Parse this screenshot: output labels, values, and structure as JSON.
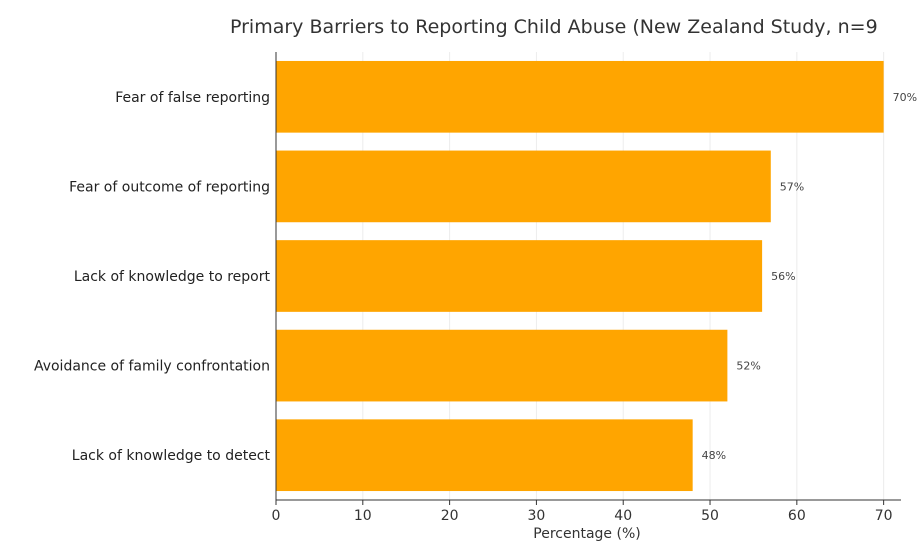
{
  "chart_data": {
    "type": "bar",
    "orientation": "horizontal",
    "title": "Primary Barriers to Reporting Child Abuse (New Zealand Study, n=9",
    "xlabel": "Percentage (%)",
    "ylabel": "",
    "xlim": [
      0,
      72
    ],
    "x_ticks": [
      0,
      10,
      20,
      30,
      40,
      50,
      60,
      70
    ],
    "categories": [
      "Fear of false reporting",
      "Fear of outcome of reporting",
      "Lack of knowledge to report",
      "Avoidance of family confrontation",
      "Lack of knowledge to detect"
    ],
    "values": [
      70,
      57,
      56,
      52,
      48
    ],
    "data_labels": [
      "70%",
      "57%",
      "56%",
      "52%",
      "48%"
    ],
    "bar_color": "#ffa500",
    "grid": true
  }
}
